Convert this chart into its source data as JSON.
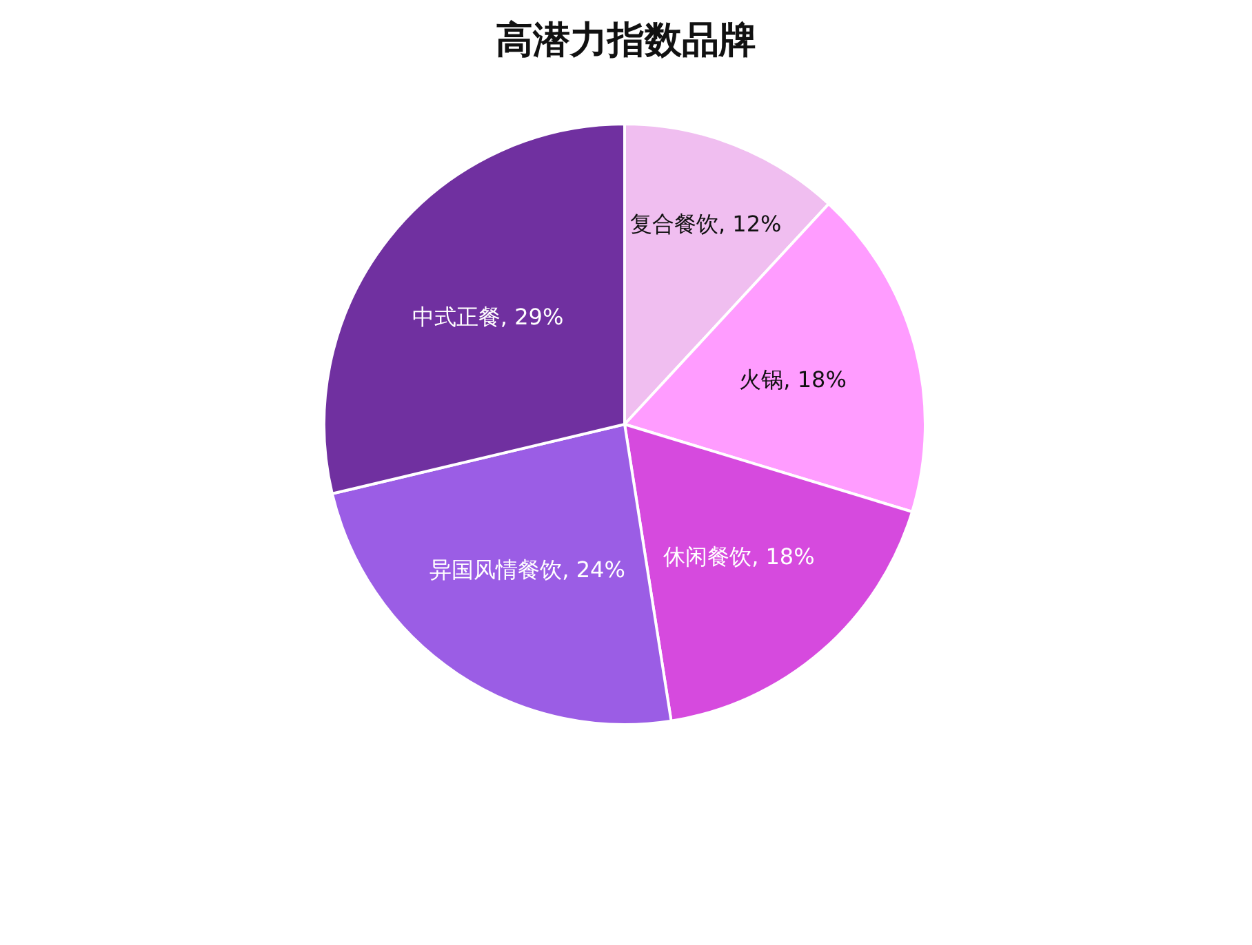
{
  "chart_data": {
    "type": "pie",
    "title": "高潜力指数品牌",
    "categories": [
      "复合餐饮",
      "火锅",
      "休闲餐饮",
      "异国风情餐饮",
      "中式正餐"
    ],
    "values": [
      12,
      18,
      18,
      24,
      29
    ],
    "value_labels": [
      "12%",
      "18%",
      "18%",
      "24%",
      "29%"
    ],
    "colors": [
      "#f0bef0",
      "#ff9cff",
      "#d64ade",
      "#9b5de5",
      "#7030a0"
    ]
  }
}
